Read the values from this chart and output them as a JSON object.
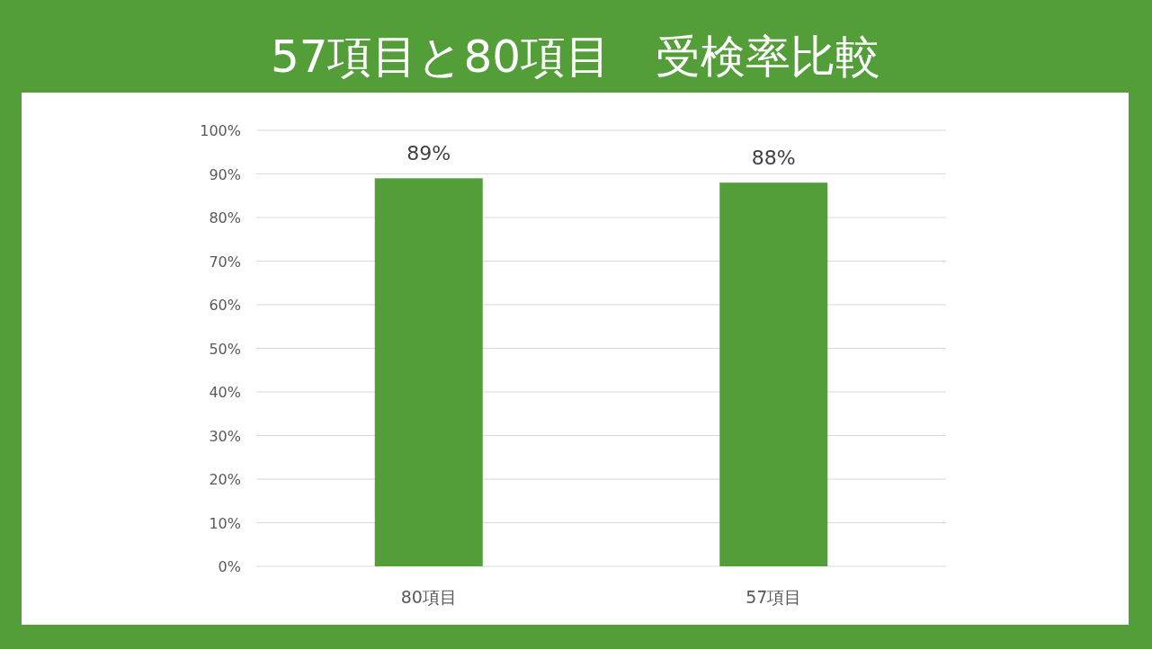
{
  "chart_data": {
    "type": "bar",
    "title": "57項目と80項目　受検率比較",
    "categories": [
      "80項目",
      "57項目"
    ],
    "values": [
      89,
      88
    ],
    "value_labels": [
      "89%",
      "88%"
    ],
    "color": "#539e39",
    "ylim": [
      0,
      100
    ],
    "yticks": [
      {
        "value": 0,
        "label": "0%"
      },
      {
        "value": 10,
        "label": "10%"
      },
      {
        "value": 20,
        "label": "20%"
      },
      {
        "value": 30,
        "label": "30%"
      },
      {
        "value": 40,
        "label": "40%"
      },
      {
        "value": 50,
        "label": "50%"
      },
      {
        "value": 60,
        "label": "60%"
      },
      {
        "value": 70,
        "label": "70%"
      },
      {
        "value": 80,
        "label": "80%"
      },
      {
        "value": 90,
        "label": "90%"
      },
      {
        "value": 100,
        "label": "100%"
      }
    ],
    "grid": "y"
  }
}
